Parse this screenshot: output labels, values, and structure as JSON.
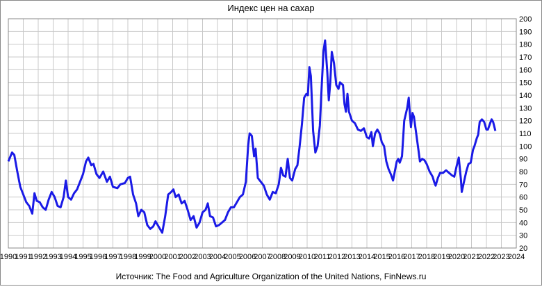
{
  "chart_data": {
    "type": "line",
    "title": "Индекс цен на сахар",
    "source": "Источник: The Food and Agriculture Organization of the United Nations, FinNews.ru",
    "grid": true,
    "xlim": [
      1990,
      2024
    ],
    "xticks": [
      1990,
      1991,
      1992,
      1993,
      1994,
      1995,
      1996,
      1997,
      1998,
      1999,
      2000,
      2001,
      2002,
      2003,
      2004,
      2005,
      2006,
      2007,
      2008,
      2009,
      2010,
      2011,
      2012,
      2013,
      2014,
      2015,
      2016,
      2017,
      2018,
      2019,
      2020,
      2021,
      2022,
      2023,
      2024
    ],
    "ylim": [
      20,
      200
    ],
    "yticks": [
      20,
      30,
      40,
      50,
      60,
      70,
      80,
      90,
      100,
      110,
      120,
      130,
      140,
      150,
      160,
      170,
      180,
      190,
      200
    ],
    "series": [
      {
        "color": "#1a1ae6",
        "x": [
          1990.0,
          1990.25,
          1990.4,
          1990.6,
          1990.8,
          1991.0,
          1991.2,
          1991.4,
          1991.6,
          1991.75,
          1991.9,
          1992.1,
          1992.3,
          1992.5,
          1992.7,
          1992.9,
          1993.1,
          1993.3,
          1993.5,
          1993.7,
          1993.85,
          1994.0,
          1994.2,
          1994.4,
          1994.6,
          1994.8,
          1995.0,
          1995.2,
          1995.35,
          1995.55,
          1995.7,
          1995.9,
          1996.1,
          1996.35,
          1996.6,
          1996.8,
          1997.0,
          1997.3,
          1997.5,
          1997.8,
          1998.0,
          1998.15,
          1998.35,
          1998.55,
          1998.7,
          1998.9,
          1999.1,
          1999.3,
          1999.5,
          1999.7,
          1999.85,
          2000.0,
          2000.15,
          2000.3,
          2000.5,
          2000.7,
          2000.9,
          2001.05,
          2001.2,
          2001.4,
          2001.6,
          2001.8,
          2002.0,
          2002.2,
          2002.4,
          2002.6,
          2002.8,
          2003.0,
          2003.2,
          2003.35,
          2003.5,
          2003.7,
          2003.9,
          2004.1,
          2004.3,
          2004.5,
          2004.7,
          2004.9,
          2005.1,
          2005.3,
          2005.5,
          2005.7,
          2005.9,
          2006.05,
          2006.15,
          2006.3,
          2006.45,
          2006.55,
          2006.7,
          2006.9,
          2007.1,
          2007.3,
          2007.5,
          2007.7,
          2007.9,
          2008.1,
          2008.25,
          2008.4,
          2008.55,
          2008.7,
          2008.85,
          2009.0,
          2009.2,
          2009.35,
          2009.5,
          2009.65,
          2009.8,
          2009.95,
          2010.05,
          2010.15,
          2010.25,
          2010.4,
          2010.55,
          2010.7,
          2010.85,
          2011.0,
          2011.1,
          2011.2,
          2011.35,
          2011.45,
          2011.55,
          2011.65,
          2011.8,
          2011.95,
          2012.1,
          2012.2,
          2012.4,
          2012.5,
          2012.6,
          2012.7,
          2012.8,
          2013.0,
          2013.2,
          2013.4,
          2013.6,
          2013.8,
          2014.0,
          2014.15,
          2014.3,
          2014.4,
          2014.55,
          2014.7,
          2014.85,
          2015.0,
          2015.15,
          2015.3,
          2015.45,
          2015.6,
          2015.75,
          2015.9,
          2016.0,
          2016.1,
          2016.2,
          2016.35,
          2016.5,
          2016.7,
          2016.8,
          2016.9,
          2016.95,
          2017.05,
          2017.15,
          2017.3,
          2017.45,
          2017.55,
          2017.7,
          2017.85,
          2018.0,
          2018.2,
          2018.4,
          2018.5,
          2018.6,
          2018.75,
          2018.9,
          2019.1,
          2019.3,
          2019.5,
          2019.7,
          2019.85,
          2020.0,
          2020.15,
          2020.3,
          2020.35,
          2020.5,
          2020.65,
          2020.8,
          2020.95,
          2021.1,
          2021.2,
          2021.35,
          2021.45,
          2021.55,
          2021.7,
          2021.85,
          2022.0,
          2022.1,
          2022.25,
          2022.35,
          2022.45,
          2022.6
        ],
        "values": [
          88,
          95,
          93,
          80,
          68,
          62,
          56,
          53,
          47,
          63,
          57,
          56,
          52,
          50,
          58,
          64,
          60,
          53,
          52,
          60,
          73,
          60,
          58,
          63,
          66,
          72,
          78,
          88,
          91,
          85,
          86,
          78,
          75,
          80,
          72,
          76,
          68,
          67,
          70,
          71,
          75,
          76,
          62,
          55,
          45,
          50,
          48,
          38,
          35,
          37,
          41,
          38,
          35,
          32,
          45,
          62,
          64,
          66,
          60,
          62,
          55,
          57,
          50,
          42,
          45,
          36,
          40,
          48,
          50,
          55,
          45,
          44,
          37,
          38,
          40,
          42,
          48,
          52,
          52,
          56,
          60,
          62,
          72,
          100,
          110,
          108,
          92,
          98,
          75,
          72,
          69,
          62,
          58,
          64,
          63,
          70,
          83,
          77,
          76,
          90,
          75,
          73,
          82,
          85,
          100,
          117,
          138,
          141,
          140,
          162,
          155,
          112,
          95,
          100,
          116,
          153,
          175,
          183,
          158,
          136,
          150,
          174,
          165,
          148,
          145,
          150,
          148,
          133,
          127,
          141,
          127,
          120,
          118,
          113,
          112,
          114,
          107,
          106,
          111,
          100,
          110,
          113,
          110,
          103,
          100,
          88,
          82,
          78,
          73,
          82,
          88,
          90,
          87,
          92,
          120,
          130,
          138,
          122,
          115,
          126,
          123,
          110,
          97,
          88,
          90,
          89,
          86,
          80,
          76,
          72,
          69,
          75,
          79,
          79,
          81,
          79,
          77,
          76,
          84,
          91,
          73,
          64,
          72,
          80,
          86,
          87,
          97,
          100,
          106,
          109,
          119,
          121,
          119,
          113,
          113,
          118,
          121,
          119,
          112
        ]
      }
    ]
  }
}
